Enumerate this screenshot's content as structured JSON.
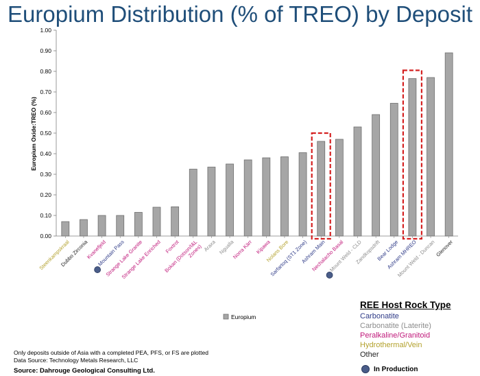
{
  "chart_data": {
    "type": "bar",
    "title": "Europium Distribution (% of TREO) by Deposit",
    "ylabel": "Europium Oxide:TREO  (%)",
    "xlabel": "",
    "ylim": [
      0,
      1.0
    ],
    "yticks": [
      "0.00",
      "0.10",
      "0.20",
      "0.30",
      "0.40",
      "0.50",
      "0.60",
      "0.70",
      "0.80",
      "0.90",
      "1.00"
    ],
    "legend_position": "bottom",
    "grid": false,
    "series": [
      {
        "name": "Europium",
        "color": "#a6a6a6",
        "values": [
          0.07,
          0.08,
          0.1,
          0.1,
          0.115,
          0.14,
          0.142,
          0.325,
          0.335,
          0.35,
          0.37,
          0.38,
          0.385,
          0.405,
          0.46,
          0.47,
          0.53,
          0.59,
          0.645,
          0.765,
          0.77,
          0.89
        ]
      }
    ],
    "categories": [
      {
        "label": "Steenkampskraal",
        "type": "Hydrothermal/Vein",
        "in_production": false
      },
      {
        "label": "Dubbo Zirconia",
        "type": "Other",
        "in_production": false
      },
      {
        "label": "Kvanefjeld",
        "type": "Peralkaline/Granitoid",
        "in_production": false
      },
      {
        "label": "Mountain Pass",
        "type": "Carbonatite",
        "in_production": true
      },
      {
        "label": "Strange Lake Granite",
        "type": "Peralkaline/Granitoid",
        "in_production": false
      },
      {
        "label": "Strange Lake Enriched",
        "type": "Peralkaline/Granitoid",
        "in_production": false
      },
      {
        "label": "Foxtrot",
        "type": "Peralkaline/Granitoid",
        "in_production": false
      },
      {
        "label": "Bokan (Dotson/I&L Zones)",
        "type": "Peralkaline/Granitoid",
        "in_production": false
      },
      {
        "label": "Araxa",
        "type": "Carbonatite (Laterite)",
        "in_production": false
      },
      {
        "label": "Ngualla",
        "type": "Carbonatite (Laterite)",
        "in_production": false
      },
      {
        "label": "Norra Kärr",
        "type": "Peralkaline/Granitoid",
        "in_production": false
      },
      {
        "label": "Kipawa",
        "type": "Peralkaline/Granitoid",
        "in_production": false
      },
      {
        "label": "Nolans Bore",
        "type": "Hydrothermal/Vein",
        "in_production": false
      },
      {
        "label": "Sarfartoq (ST1 Zone)",
        "type": "Carbonatite",
        "in_production": false
      },
      {
        "label": "Ashram Main",
        "type": "Carbonatite",
        "in_production": false
      },
      {
        "label": "Nechalacho Basal",
        "type": "Peralkaline/Granitoid",
        "in_production": false
      },
      {
        "label": "Mount Weld - CLD",
        "type": "Carbonatite (Laterite)",
        "in_production": true
      },
      {
        "label": "Zandkopsdrift",
        "type": "Carbonatite (Laterite)",
        "in_production": false
      },
      {
        "label": "Bear Lodge",
        "type": "Carbonatite",
        "in_production": false
      },
      {
        "label": "Ashram MHREO",
        "type": "Carbonatite",
        "in_production": false
      },
      {
        "label": "Mount Weld - Duncan",
        "type": "Carbonatite (Laterite)",
        "in_production": false
      },
      {
        "label": "Glenover",
        "type": "Other",
        "in_production": false
      }
    ],
    "highlighted_categories": [
      "Ashram Main",
      "Ashram MHREO"
    ]
  },
  "legend": {
    "title": "REE Host Rock Type",
    "entries": [
      {
        "label": "Carbonatite",
        "color": "#2e3a87"
      },
      {
        "label": "Carbonatite (Laterite)",
        "color": "#8c8c8c"
      },
      {
        "label": "Peralkaline/Granitoid",
        "color": "#c0187a"
      },
      {
        "label": "Hydrothermal/Vein",
        "color": "#b3a12c"
      },
      {
        "label": "Other",
        "color": "#222222"
      }
    ],
    "production_label": "In Production"
  },
  "colors": {
    "title": "#1f4e79",
    "bar_fill": "#a6a6a6",
    "bar_stroke": "#6e6e6e",
    "highlight_box": "#d42020",
    "production_marker": "#4a5d89"
  },
  "notes": {
    "line1": "Only deposits outside of Asia with a completed PEA, PFS, or FS are plotted",
    "line2": "Data Source: Technology Metals Research, LLC",
    "source": "Source: Dahrouge Geological Consulting Ltd."
  }
}
